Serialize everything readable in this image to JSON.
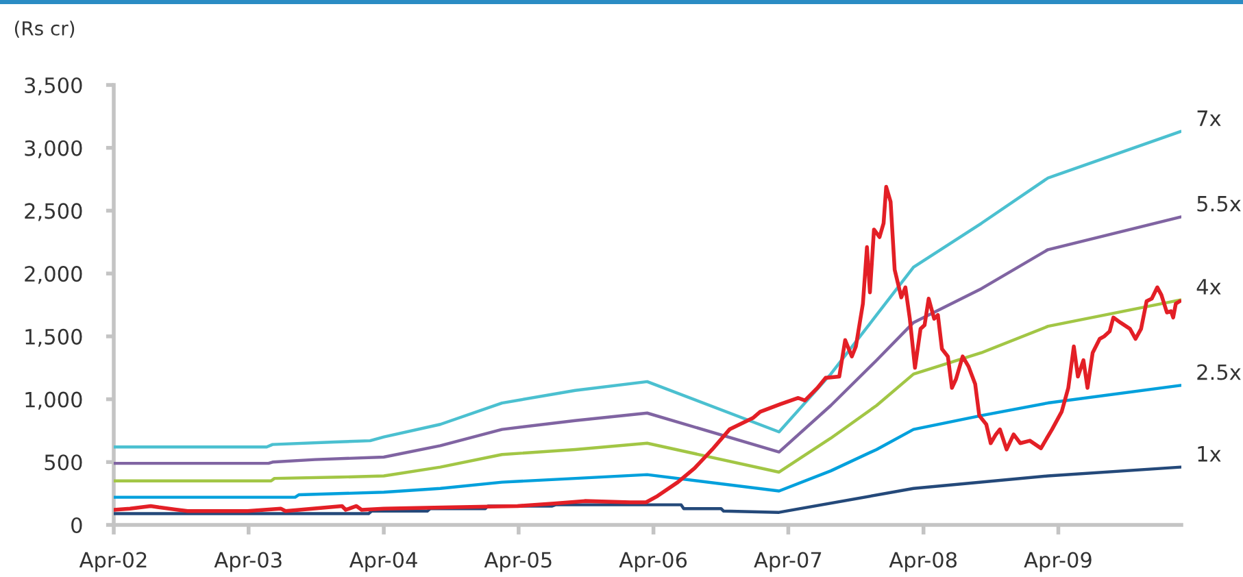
{
  "chart_data": {
    "type": "line",
    "ylabel": "(Rs cr)",
    "xlim": [
      "2002-04-01",
      "2010-02-28"
    ],
    "xticks": [
      {
        "value": "2002-04",
        "label": "Apr-02"
      },
      {
        "value": "2003-04",
        "label": "Apr-03"
      },
      {
        "value": "2004-04",
        "label": "Apr-04"
      },
      {
        "value": "2005-04",
        "label": "Apr-05"
      },
      {
        "value": "2006-04",
        "label": "Apr-06"
      },
      {
        "value": "2007-04",
        "label": "Apr-07"
      },
      {
        "value": "2008-04",
        "label": "Apr-08"
      },
      {
        "value": "2009-04",
        "label": "Apr-09"
      }
    ],
    "ylim": [
      0,
      3500
    ],
    "yticks": [
      0,
      500,
      {
        "value": 1000,
        "label": "1,000"
      },
      {
        "value": 1500,
        "label": "1,500"
      },
      {
        "value": 2000,
        "label": "2,000"
      },
      {
        "value": 2500,
        "label": "2,500"
      },
      {
        "value": 3000,
        "label": "3,000"
      },
      {
        "value": 3500,
        "label": "3,500"
      }
    ],
    "series": [
      {
        "name": "7x",
        "color": "#4bc0d0",
        "x": [
          "2002-04-01",
          "2003-05-20",
          "2003-06-05",
          "2003-11-20",
          "2004-02-24",
          "2004-04-01",
          "2004-09-01",
          "2005-02-15",
          "2005-09-01",
          "2006-03-15",
          "2007-03-07",
          "2007-07-25",
          "2007-11-26",
          "2008-03-05",
          "2008-09-05",
          "2009-03-04",
          "2010-02-26"
        ],
        "values": [
          620,
          620,
          640,
          660,
          670,
          700,
          800,
          970,
          1070,
          1140,
          740,
          1200,
          1670,
          2050,
          2400,
          2760,
          3130
        ]
      },
      {
        "name": "5.5x",
        "color": "#8064a2",
        "x": [
          "2002-04-01",
          "2003-05-25",
          "2003-06-05",
          "2003-09-28",
          "2004-04-01",
          "2004-09-01",
          "2005-02-15",
          "2005-09-01",
          "2006-03-15",
          "2007-03-07",
          "2007-07-25",
          "2007-11-26",
          "2008-03-05",
          "2008-09-05",
          "2009-03-04",
          "2010-02-26"
        ],
        "values": [
          490,
          490,
          500,
          520,
          540,
          630,
          760,
          830,
          890,
          580,
          950,
          1310,
          1610,
          1880,
          2190,
          2450
        ]
      },
      {
        "name": "4x",
        "color": "#a2c645",
        "x": [
          "2002-04-01",
          "2003-06-01",
          "2003-06-10",
          "2003-12-01",
          "2004-04-01",
          "2004-09-01",
          "2005-02-15",
          "2005-09-01",
          "2006-03-15",
          "2007-03-07",
          "2007-07-25",
          "2007-11-26",
          "2008-03-05",
          "2008-09-05",
          "2009-03-04",
          "2010-02-26"
        ],
        "values": [
          350,
          350,
          370,
          380,
          390,
          460,
          560,
          600,
          650,
          420,
          690,
          950,
          1200,
          1370,
          1580,
          1790
        ]
      },
      {
        "name": "2.5x",
        "color": "#00a0dc",
        "x": [
          "2002-04-01",
          "2003-08-05",
          "2003-08-15",
          "2004-04-01",
          "2004-09-01",
          "2005-02-15",
          "2005-09-01",
          "2006-03-15",
          "2007-03-07",
          "2007-07-25",
          "2007-11-26",
          "2008-03-05",
          "2008-09-05",
          "2009-03-04",
          "2010-02-26"
        ],
        "values": [
          220,
          220,
          240,
          260,
          290,
          340,
          370,
          400,
          270,
          430,
          600,
          760,
          870,
          970,
          1110
        ]
      },
      {
        "name": "1x",
        "color": "#24497a",
        "x": [
          "2002-04-01",
          "2004-02-20",
          "2004-02-28",
          "2004-07-28",
          "2004-08-05",
          "2005-01-01",
          "2005-01-08",
          "2005-07-01",
          "2005-07-10",
          "2006-06-15",
          "2006-06-22",
          "2006-10-01",
          "2006-10-08",
          "2007-03-07",
          "2008-03-05",
          "2009-03-04",
          "2010-02-26"
        ],
        "values": [
          90,
          90,
          110,
          110,
          130,
          130,
          150,
          150,
          160,
          160,
          130,
          130,
          110,
          100,
          290,
          390,
          460
        ]
      },
      {
        "color": "#e31f26",
        "x": [
          "2002-04-01",
          "2002-05-15",
          "2002-07-10",
          "2002-08-01",
          "2002-10-18",
          "2003-03-29",
          "2003-06-27",
          "2003-07-10",
          "2003-12-10",
          "2003-12-20",
          "2004-01-18",
          "2004-02-01",
          "2004-04-01",
          "2004-10-01",
          "2005-03-29",
          "2005-07-06",
          "2005-09-27",
          "2006-01-28",
          "2006-03-12",
          "2006-04-12",
          "2006-06-06",
          "2006-07-21",
          "2006-09-07",
          "2006-10-24",
          "2006-12-26",
          "2007-01-15",
          "2007-03-10",
          "2007-04-28",
          "2007-05-16",
          "2007-06-19",
          "2007-07-11",
          "2007-08-17",
          "2007-09-02",
          "2007-09-20",
          "2007-10-01",
          "2007-10-20",
          "2007-10-31",
          "2007-11-08",
          "2007-11-19",
          "2007-12-04",
          "2007-12-15",
          "2007-12-22",
          "2008-01-03",
          "2008-01-14",
          "2008-02-01",
          "2008-02-12",
          "2008-02-24",
          "2008-03-09",
          "2008-03-24",
          "2008-04-04",
          "2008-04-15",
          "2008-04-30",
          "2008-05-10",
          "2008-05-21",
          "2008-06-06",
          "2008-06-17",
          "2008-06-28",
          "2008-07-16",
          "2008-08-01",
          "2008-08-19",
          "2008-08-30",
          "2008-09-18",
          "2008-09-30",
          "2008-10-14",
          "2008-10-25",
          "2008-11-12",
          "2008-12-01",
          "2008-12-19",
          "2009-01-14",
          "2009-02-13",
          "2009-03-15",
          "2009-04-10",
          "2009-04-28",
          "2009-05-13",
          "2009-05-24",
          "2009-06-08",
          "2009-06-19",
          "2009-07-03",
          "2009-07-22",
          "2009-08-03",
          "2009-08-18",
          "2009-08-28",
          "2009-09-16",
          "2009-10-12",
          "2009-10-27",
          "2009-11-11",
          "2009-11-26",
          "2009-12-10",
          "2009-12-25",
          "2010-01-05",
          "2010-01-20",
          "2010-01-31",
          "2010-02-06",
          "2010-02-13",
          "2010-02-24"
        ],
        "values": [
          120,
          130,
          150,
          140,
          110,
          110,
          130,
          110,
          150,
          120,
          150,
          120,
          130,
          140,
          150,
          170,
          190,
          180,
          180,
          230,
          340,
          450,
          600,
          760,
          850,
          900,
          960,
          1010,
          990,
          1090,
          1170,
          1180,
          1470,
          1340,
          1420,
          1760,
          2210,
          1850,
          2350,
          2290,
          2400,
          2690,
          2570,
          2030,
          1810,
          1890,
          1640,
          1250,
          1560,
          1590,
          1800,
          1640,
          1670,
          1400,
          1340,
          1090,
          1160,
          1340,
          1260,
          1120,
          870,
          800,
          650,
          720,
          760,
          600,
          720,
          650,
          670,
          610,
          760,
          900,
          1090,
          1420,
          1180,
          1310,
          1090,
          1370,
          1480,
          1500,
          1540,
          1650,
          1610,
          1560,
          1480,
          1560,
          1780,
          1800,
          1890,
          1830,
          1690,
          1700,
          1650,
          1760,
          1780
        ]
      }
    ]
  }
}
